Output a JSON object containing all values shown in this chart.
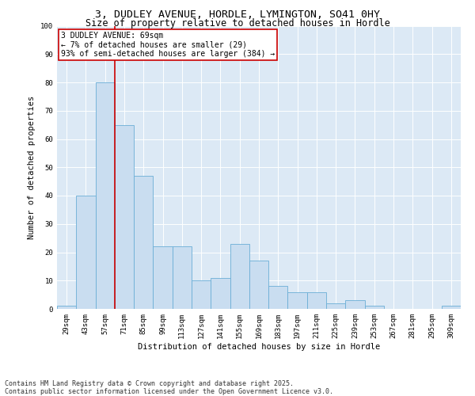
{
  "title1": "3, DUDLEY AVENUE, HORDLE, LYMINGTON, SO41 0HY",
  "title2": "Size of property relative to detached houses in Hordle",
  "xlabel": "Distribution of detached houses by size in Hordle",
  "ylabel": "Number of detached properties",
  "categories": [
    "29sqm",
    "43sqm",
    "57sqm",
    "71sqm",
    "85sqm",
    "99sqm",
    "113sqm",
    "127sqm",
    "141sqm",
    "155sqm",
    "169sqm",
    "183sqm",
    "197sqm",
    "211sqm",
    "225sqm",
    "239sqm",
    "253sqm",
    "267sqm",
    "281sqm",
    "295sqm",
    "309sqm"
  ],
  "values": [
    1,
    40,
    80,
    65,
    47,
    22,
    22,
    10,
    11,
    23,
    17,
    8,
    6,
    6,
    2,
    3,
    1,
    0,
    0,
    0,
    1
  ],
  "bar_color": "#c9ddf0",
  "bar_edge_color": "#6aaed6",
  "vline_x_index": 2,
  "vline_color": "#cc0000",
  "annotation_text": "3 DUDLEY AVENUE: 69sqm\n← 7% of detached houses are smaller (29)\n93% of semi-detached houses are larger (384) →",
  "annotation_box_color": "#ffffff",
  "annotation_box_edge": "#cc0000",
  "ylim": [
    0,
    100
  ],
  "yticks": [
    0,
    10,
    20,
    30,
    40,
    50,
    60,
    70,
    80,
    90,
    100
  ],
  "plot_bg": "#dce9f5",
  "footer": "Contains HM Land Registry data © Crown copyright and database right 2025.\nContains public sector information licensed under the Open Government Licence v3.0.",
  "title_fontsize": 9.5,
  "subtitle_fontsize": 8.5,
  "axis_label_fontsize": 7.5,
  "tick_fontsize": 6.5,
  "annotation_fontsize": 7,
  "footer_fontsize": 6
}
